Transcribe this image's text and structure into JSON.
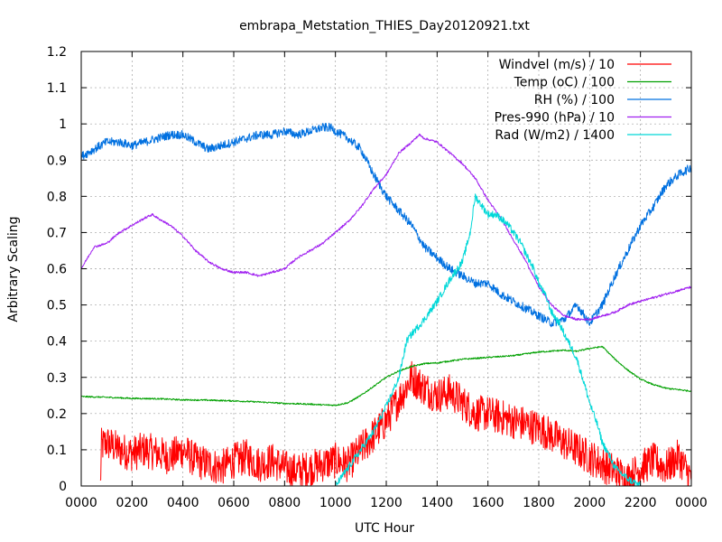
{
  "chart_data": {
    "type": "line",
    "title": "embrapa_Metstation_THIES_Day20120921.txt",
    "xlabel": "UTC Hour",
    "ylabel": "Arbitrary Scaling",
    "xlim": [
      0,
      24
    ],
    "ylim": [
      0,
      1.2
    ],
    "grid": true,
    "legend_position": "top-right",
    "x_ticks": [
      {
        "value": 0,
        "label": "0000"
      },
      {
        "value": 2,
        "label": "0200"
      },
      {
        "value": 4,
        "label": "0400"
      },
      {
        "value": 6,
        "label": "0600"
      },
      {
        "value": 8,
        "label": "0800"
      },
      {
        "value": 10,
        "label": "1000"
      },
      {
        "value": 12,
        "label": "1200"
      },
      {
        "value": 14,
        "label": "1400"
      },
      {
        "value": 16,
        "label": "1600"
      },
      {
        "value": 18,
        "label": "1800"
      },
      {
        "value": 20,
        "label": "2000"
      },
      {
        "value": 22,
        "label": "2200"
      },
      {
        "value": 24,
        "label": "0000"
      }
    ],
    "y_ticks": [
      {
        "value": 0,
        "label": "0"
      },
      {
        "value": 0.1,
        "label": "0.1"
      },
      {
        "value": 0.2,
        "label": "0.2"
      },
      {
        "value": 0.3,
        "label": "0.3"
      },
      {
        "value": 0.4,
        "label": "0.4"
      },
      {
        "value": 0.5,
        "label": "0.5"
      },
      {
        "value": 0.6,
        "label": "0.6"
      },
      {
        "value": 0.7,
        "label": "0.7"
      },
      {
        "value": 0.8,
        "label": "0.8"
      },
      {
        "value": 0.9,
        "label": "0.9"
      },
      {
        "value": 1.0,
        "label": "1"
      },
      {
        "value": 1.1,
        "label": "1.1"
      },
      {
        "value": 1.2,
        "label": "1.2"
      }
    ],
    "series": [
      {
        "name": "Windvel (m/s) / 10",
        "color": "#ff0000",
        "x": [
          0.75,
          0.8,
          1.0,
          1.5,
          2.0,
          2.5,
          3.0,
          3.5,
          4.0,
          4.5,
          5.0,
          5.5,
          6.0,
          6.5,
          7.0,
          7.5,
          8.0,
          8.5,
          9.0,
          9.5,
          10.0,
          10.5,
          11.0,
          11.5,
          12.0,
          12.5,
          13.0,
          13.5,
          14.0,
          14.5,
          15.0,
          15.5,
          16.0,
          16.5,
          17.0,
          17.5,
          18.0,
          18.5,
          19.0,
          19.5,
          20.0,
          20.5,
          21.0,
          21.5,
          22.0,
          22.5,
          23.0,
          23.5,
          24.0
        ],
        "y": [
          0.0,
          0.11,
          0.12,
          0.1,
          0.09,
          0.1,
          0.09,
          0.08,
          0.1,
          0.07,
          0.06,
          0.05,
          0.07,
          0.08,
          0.06,
          0.07,
          0.05,
          0.04,
          0.05,
          0.06,
          0.07,
          0.06,
          0.1,
          0.14,
          0.18,
          0.24,
          0.3,
          0.27,
          0.25,
          0.26,
          0.23,
          0.2,
          0.2,
          0.19,
          0.18,
          0.17,
          0.16,
          0.14,
          0.12,
          0.1,
          0.08,
          0.06,
          0.04,
          0.02,
          0.05,
          0.07,
          0.05,
          0.08,
          0.02
        ],
        "noise": 0.05,
        "clip_min": 0
      },
      {
        "name": "Temp (oC) / 100",
        "color": "#00a000",
        "x": [
          0,
          1,
          2,
          3,
          4,
          5,
          6,
          7,
          8,
          9,
          9.5,
          10,
          10.5,
          11,
          11.5,
          12,
          12.5,
          13,
          13.5,
          14,
          15,
          16,
          17,
          18,
          19,
          19.5,
          20,
          20.5,
          21,
          21.5,
          22,
          22.5,
          23,
          24
        ],
        "y": [
          0.247,
          0.245,
          0.242,
          0.241,
          0.238,
          0.237,
          0.235,
          0.232,
          0.228,
          0.226,
          0.224,
          0.223,
          0.23,
          0.25,
          0.275,
          0.3,
          0.318,
          0.33,
          0.338,
          0.34,
          0.35,
          0.355,
          0.36,
          0.37,
          0.375,
          0.372,
          0.38,
          0.385,
          0.35,
          0.32,
          0.295,
          0.28,
          0.27,
          0.262
        ],
        "noise": 0.002
      },
      {
        "name": "RH (%) / 100",
        "color": "#0070e0",
        "x": [
          0,
          0.5,
          1,
          1.5,
          2,
          2.5,
          3,
          3.5,
          4,
          4.5,
          5,
          5.5,
          6,
          6.5,
          7,
          7.5,
          8,
          8.5,
          9,
          9.5,
          9.8,
          10,
          10.5,
          11,
          11.5,
          12,
          12.5,
          13,
          13.5,
          14,
          14.5,
          15,
          15.5,
          16,
          16.5,
          17,
          17.5,
          18,
          18.5,
          19,
          19.5,
          20,
          20.5,
          21,
          21.5,
          22,
          22.5,
          23,
          23.5,
          24
        ],
        "y": [
          0.91,
          0.93,
          0.95,
          0.95,
          0.94,
          0.95,
          0.96,
          0.97,
          0.97,
          0.95,
          0.93,
          0.94,
          0.95,
          0.96,
          0.97,
          0.97,
          0.98,
          0.97,
          0.98,
          0.99,
          0.99,
          0.98,
          0.96,
          0.93,
          0.86,
          0.8,
          0.76,
          0.72,
          0.66,
          0.63,
          0.6,
          0.58,
          0.56,
          0.56,
          0.53,
          0.51,
          0.49,
          0.47,
          0.45,
          0.46,
          0.5,
          0.45,
          0.5,
          0.58,
          0.65,
          0.72,
          0.77,
          0.83,
          0.86,
          0.88
        ],
        "noise": 0.012
      },
      {
        "name": "Pres-990 (hPa) / 10",
        "color": "#a020f0",
        "x": [
          0,
          0.5,
          1,
          1.5,
          2,
          2.5,
          2.8,
          3,
          3.5,
          4,
          4.5,
          5,
          5.5,
          6,
          6.5,
          7,
          7.5,
          8,
          8.5,
          9,
          9.5,
          10,
          10.5,
          11,
          11.5,
          12,
          12.5,
          13,
          13.3,
          13.5,
          14,
          14.5,
          15,
          15.5,
          16,
          16.5,
          17,
          17.5,
          18,
          18.5,
          19,
          19.5,
          20,
          20.5,
          21,
          21.5,
          22,
          22.5,
          23,
          23.5,
          24
        ],
        "y": [
          0.6,
          0.66,
          0.67,
          0.7,
          0.72,
          0.74,
          0.75,
          0.74,
          0.72,
          0.69,
          0.65,
          0.62,
          0.6,
          0.59,
          0.59,
          0.58,
          0.59,
          0.6,
          0.63,
          0.65,
          0.67,
          0.7,
          0.73,
          0.77,
          0.82,
          0.86,
          0.92,
          0.95,
          0.97,
          0.96,
          0.95,
          0.92,
          0.89,
          0.85,
          0.79,
          0.74,
          0.68,
          0.62,
          0.55,
          0.5,
          0.47,
          0.46,
          0.46,
          0.47,
          0.48,
          0.5,
          0.51,
          0.52,
          0.53,
          0.54,
          0.55
        ],
        "noise": 0.003
      },
      {
        "name": "Rad (W/m2) / 1400",
        "color": "#00d8d8",
        "x": [
          10,
          10.5,
          11,
          11.5,
          12,
          12.5,
          12.8,
          13,
          13.5,
          14,
          14.5,
          15,
          15.3,
          15.5,
          15.8,
          16,
          16.3,
          16.5,
          16.8,
          17,
          17.3,
          17.5,
          17.8,
          18,
          18.3,
          18.5,
          18.8,
          19,
          19.3,
          19.5,
          19.8,
          20,
          20.3,
          20.5,
          20.8,
          21,
          21.5,
          22
        ],
        "y": [
          0.0,
          0.05,
          0.1,
          0.15,
          0.22,
          0.3,
          0.4,
          0.42,
          0.46,
          0.51,
          0.57,
          0.62,
          0.7,
          0.8,
          0.77,
          0.75,
          0.75,
          0.74,
          0.72,
          0.7,
          0.67,
          0.64,
          0.6,
          0.56,
          0.52,
          0.48,
          0.45,
          0.42,
          0.38,
          0.35,
          0.28,
          0.23,
          0.17,
          0.12,
          0.08,
          0.05,
          0.02,
          0.0
        ],
        "noise": 0.01,
        "clip_min": 0
      }
    ]
  }
}
